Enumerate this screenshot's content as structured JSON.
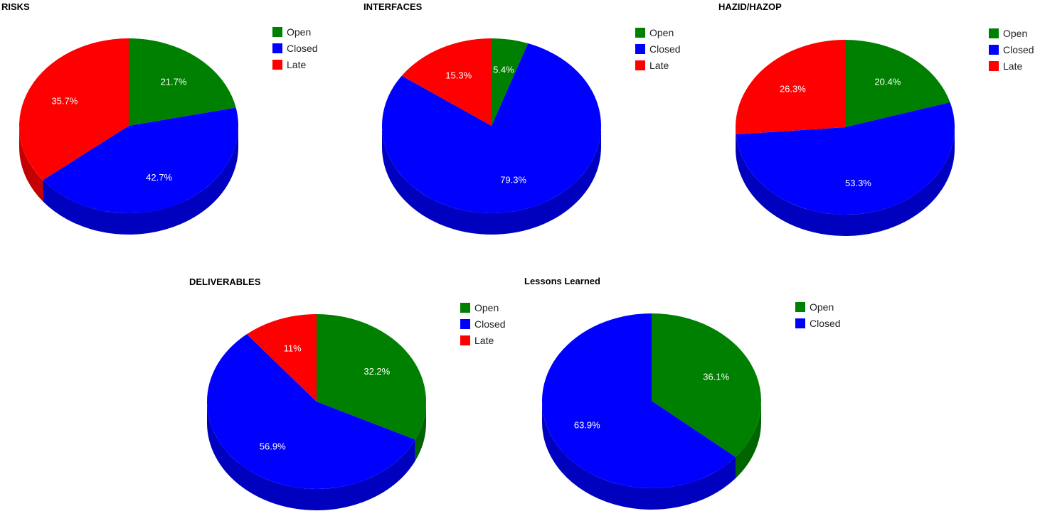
{
  "colors": {
    "Open": "#008000",
    "Closed": "#0000ff",
    "Late": "#ff0000",
    "Open_side": "#006400",
    "Closed_side": "#0000bf",
    "Late_side": "#c40000"
  },
  "chart_data": [
    {
      "type": "pie",
      "title": "RISKS",
      "legend_position": "top-right",
      "series": [
        {
          "name": "Open",
          "value": 21.7,
          "label": "21.7%"
        },
        {
          "name": "Closed",
          "value": 42.7,
          "label": "42.7%"
        },
        {
          "name": "Late",
          "value": 35.7,
          "label": "35.7%"
        }
      ]
    },
    {
      "type": "pie",
      "title": "INTERFACES",
      "legend_position": "top-right",
      "series": [
        {
          "name": "Open",
          "value": 5.4,
          "label": "5.4%"
        },
        {
          "name": "Closed",
          "value": 79.3,
          "label": "79.3%"
        },
        {
          "name": "Late",
          "value": 15.3,
          "label": "15.3%"
        }
      ]
    },
    {
      "type": "pie",
      "title": "HAZID/HAZOP",
      "legend_position": "top-right",
      "series": [
        {
          "name": "Open",
          "value": 20.4,
          "label": "20.4%"
        },
        {
          "name": "Closed",
          "value": 53.3,
          "label": "53.3%"
        },
        {
          "name": "Late",
          "value": 26.3,
          "label": "26.3%"
        }
      ]
    },
    {
      "type": "pie",
      "title": "DELIVERABLES",
      "legend_position": "top-right",
      "series": [
        {
          "name": "Open",
          "value": 32.2,
          "label": "32.2%"
        },
        {
          "name": "Closed",
          "value": 56.9,
          "label": "56.9%"
        },
        {
          "name": "Late",
          "value": 11,
          "label": "11%"
        }
      ]
    },
    {
      "type": "pie",
      "title": "Lessons Learned",
      "legend_position": "top-right",
      "series": [
        {
          "name": "Open",
          "value": 36.1,
          "label": "36.1%"
        },
        {
          "name": "Closed",
          "value": 63.9,
          "label": "63.9%"
        }
      ]
    }
  ]
}
